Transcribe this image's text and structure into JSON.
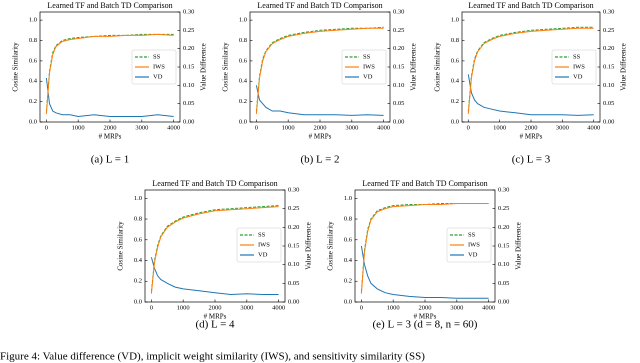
{
  "chart_data": [
    {
      "type": "line",
      "title": "Learned TF and Batch TD Comparison",
      "caption": "(a) L = 1",
      "xlabel": "# MRPs",
      "ylabel": "Cosine Similarity",
      "y2label": "Value Difference",
      "x": [
        0,
        100,
        200,
        300,
        500,
        750,
        1000,
        1500,
        2000,
        2500,
        3000,
        3500,
        4000
      ],
      "series": [
        {
          "name": "SS",
          "color": "#2ca02c",
          "dash": true,
          "values": [
            0.1,
            0.5,
            0.68,
            0.75,
            0.8,
            0.82,
            0.83,
            0.84,
            0.85,
            0.85,
            0.86,
            0.86,
            0.86
          ]
        },
        {
          "name": "IWS",
          "color": "#ff7f0e",
          "values": [
            0.08,
            0.48,
            0.66,
            0.74,
            0.79,
            0.81,
            0.82,
            0.84,
            0.84,
            0.85,
            0.85,
            0.86,
            0.85
          ]
        },
        {
          "name": "VD",
          "color": "#1f77b4",
          "axis": "y2",
          "values": [
            0.12,
            0.05,
            0.03,
            0.025,
            0.02,
            0.02,
            0.015,
            0.02,
            0.015,
            0.015,
            0.015,
            0.02,
            0.015
          ]
        }
      ],
      "xlim": [
        -200,
        4200
      ],
      "xticks": [
        0,
        1000,
        2000,
        3000,
        4000
      ],
      "ylim": [
        0,
        1.08
      ],
      "yticks": [
        {
          "value": 0,
          "label": "0.0"
        },
        {
          "value": 0.2,
          "label": "0.2"
        },
        {
          "value": 0.4,
          "label": "0.4"
        },
        {
          "value": 0.6,
          "label": "0.6"
        },
        {
          "value": 0.8,
          "label": "0.8"
        },
        {
          "value": 1,
          "label": "1.0"
        }
      ],
      "y2lim": [
        0,
        0.3
      ],
      "y2ticks": [
        {
          "value": 0,
          "label": "0.00"
        },
        {
          "value": 0.05,
          "label": "0.05"
        },
        {
          "value": 0.1,
          "label": "0.10"
        },
        {
          "value": 0.15,
          "label": "0.15"
        },
        {
          "value": 0.2,
          "label": "0.20"
        },
        {
          "value": 0.25,
          "label": "0.25"
        },
        {
          "value": 0.3,
          "label": "0.30"
        }
      ]
    },
    {
      "type": "line",
      "title": "Learned TF and Batch TD Comparison",
      "caption": "(b) L = 2",
      "xlabel": "# MRPs",
      "ylabel": "Cosine Similarity",
      "y2label": "Value Difference",
      "x": [
        0,
        100,
        200,
        300,
        500,
        750,
        1000,
        1500,
        2000,
        2500,
        3000,
        3500,
        4000
      ],
      "series": [
        {
          "name": "SS",
          "color": "#2ca02c",
          "dash": true,
          "values": [
            0.1,
            0.45,
            0.62,
            0.7,
            0.78,
            0.82,
            0.85,
            0.88,
            0.9,
            0.91,
            0.92,
            0.92,
            0.93
          ]
        },
        {
          "name": "IWS",
          "color": "#ff7f0e",
          "values": [
            0.08,
            0.43,
            0.6,
            0.69,
            0.77,
            0.81,
            0.84,
            0.87,
            0.89,
            0.9,
            0.91,
            0.92,
            0.92
          ]
        },
        {
          "name": "VD",
          "color": "#1f77b4",
          "axis": "y2",
          "values": [
            0.1,
            0.06,
            0.05,
            0.04,
            0.03,
            0.03,
            0.025,
            0.02,
            0.02,
            0.02,
            0.018,
            0.02,
            0.018
          ]
        }
      ],
      "xlim": [
        -200,
        4200
      ],
      "xticks": [
        0,
        1000,
        2000,
        3000,
        4000
      ],
      "ylim": [
        0,
        1.08
      ],
      "yticks": [
        {
          "value": 0,
          "label": "0.0"
        },
        {
          "value": 0.2,
          "label": "0.2"
        },
        {
          "value": 0.4,
          "label": "0.4"
        },
        {
          "value": 0.6,
          "label": "0.6"
        },
        {
          "value": 0.8,
          "label": "0.8"
        },
        {
          "value": 1,
          "label": "1.0"
        }
      ],
      "y2lim": [
        0,
        0.3
      ],
      "y2ticks": [
        {
          "value": 0,
          "label": "0.00"
        },
        {
          "value": 0.05,
          "label": "0.05"
        },
        {
          "value": 0.1,
          "label": "0.10"
        },
        {
          "value": 0.15,
          "label": "0.15"
        },
        {
          "value": 0.2,
          "label": "0.20"
        },
        {
          "value": 0.25,
          "label": "0.25"
        },
        {
          "value": 0.3,
          "label": "0.30"
        }
      ]
    },
    {
      "type": "line",
      "title": "Learned TF and Batch TD Comparison",
      "caption": "(c) L = 3",
      "xlabel": "# MRPs",
      "ylabel": "Cosine Similarity",
      "y2label": "Value Difference",
      "x": [
        0,
        100,
        200,
        300,
        500,
        750,
        1000,
        1500,
        2000,
        2500,
        3000,
        3500,
        4000
      ],
      "series": [
        {
          "name": "SS",
          "color": "#2ca02c",
          "dash": true,
          "values": [
            0.1,
            0.45,
            0.62,
            0.7,
            0.78,
            0.82,
            0.85,
            0.88,
            0.9,
            0.91,
            0.92,
            0.93,
            0.93
          ]
        },
        {
          "name": "IWS",
          "color": "#ff7f0e",
          "values": [
            0.08,
            0.43,
            0.6,
            0.69,
            0.77,
            0.81,
            0.84,
            0.87,
            0.89,
            0.9,
            0.91,
            0.92,
            0.92
          ]
        },
        {
          "name": "VD",
          "color": "#1f77b4",
          "axis": "y2",
          "values": [
            0.13,
            0.08,
            0.06,
            0.05,
            0.04,
            0.035,
            0.03,
            0.025,
            0.02,
            0.02,
            0.02,
            0.018,
            0.02
          ]
        }
      ],
      "xlim": [
        -200,
        4200
      ],
      "xticks": [
        0,
        1000,
        2000,
        3000,
        4000
      ],
      "ylim": [
        0,
        1.08
      ],
      "yticks": [
        {
          "value": 0,
          "label": "0.0"
        },
        {
          "value": 0.2,
          "label": "0.2"
        },
        {
          "value": 0.4,
          "label": "0.4"
        },
        {
          "value": 0.6,
          "label": "0.6"
        },
        {
          "value": 0.8,
          "label": "0.8"
        },
        {
          "value": 1,
          "label": "1.0"
        }
      ],
      "y2lim": [
        0,
        0.3
      ],
      "y2ticks": [
        {
          "value": 0,
          "label": "0.00"
        },
        {
          "value": 0.05,
          "label": "0.05"
        },
        {
          "value": 0.1,
          "label": "0.10"
        },
        {
          "value": 0.15,
          "label": "0.15"
        },
        {
          "value": 0.2,
          "label": "0.20"
        },
        {
          "value": 0.25,
          "label": "0.25"
        },
        {
          "value": 0.3,
          "label": "0.30"
        }
      ]
    },
    {
      "type": "line",
      "title": "Learned TF and Batch TD Comparison",
      "caption": "(d) L = 4",
      "xlabel": "# MRPs",
      "ylabel": "Cosine Similarity",
      "y2label": "Value Difference",
      "x": [
        0,
        100,
        200,
        300,
        500,
        750,
        1000,
        1500,
        2000,
        2500,
        3000,
        3500,
        4000
      ],
      "series": [
        {
          "name": "SS",
          "color": "#2ca02c",
          "dash": true,
          "values": [
            0.1,
            0.4,
            0.55,
            0.64,
            0.73,
            0.78,
            0.82,
            0.86,
            0.89,
            0.9,
            0.91,
            0.92,
            0.93
          ]
        },
        {
          "name": "IWS",
          "color": "#ff7f0e",
          "values": [
            0.08,
            0.38,
            0.53,
            0.63,
            0.72,
            0.77,
            0.81,
            0.85,
            0.88,
            0.89,
            0.9,
            0.91,
            0.92
          ]
        },
        {
          "name": "VD",
          "color": "#1f77b4",
          "axis": "y2",
          "values": [
            0.12,
            0.09,
            0.07,
            0.06,
            0.05,
            0.04,
            0.035,
            0.03,
            0.025,
            0.02,
            0.022,
            0.02,
            0.02
          ]
        }
      ],
      "xlim": [
        -200,
        4200
      ],
      "xticks": [
        0,
        1000,
        2000,
        3000,
        4000
      ],
      "ylim": [
        0,
        1.08
      ],
      "yticks": [
        {
          "value": 0,
          "label": "0.0"
        },
        {
          "value": 0.2,
          "label": "0.2"
        },
        {
          "value": 0.4,
          "label": "0.4"
        },
        {
          "value": 0.6,
          "label": "0.6"
        },
        {
          "value": 0.8,
          "label": "0.8"
        },
        {
          "value": 1,
          "label": "1.0"
        }
      ],
      "y2lim": [
        0,
        0.3
      ],
      "y2ticks": [
        {
          "value": 0,
          "label": "0.00"
        },
        {
          "value": 0.05,
          "label": "0.05"
        },
        {
          "value": 0.1,
          "label": "0.10"
        },
        {
          "value": 0.15,
          "label": "0.15"
        },
        {
          "value": 0.2,
          "label": "0.20"
        },
        {
          "value": 0.25,
          "label": "0.25"
        },
        {
          "value": 0.3,
          "label": "0.30"
        }
      ]
    },
    {
      "type": "line",
      "title": "Learned TF and Batch TD Comparison",
      "caption": "(e) L = 3 (d = 8,  n = 60)",
      "xlabel": "# MRPs",
      "ylabel": "Cosine Similarity",
      "y2label": "Value Difference",
      "x": [
        0,
        100,
        200,
        300,
        500,
        750,
        1000,
        1500,
        2000,
        2500,
        3000,
        3500,
        4000
      ],
      "series": [
        {
          "name": "SS",
          "color": "#2ca02c",
          "dash": true,
          "values": [
            0.1,
            0.5,
            0.7,
            0.8,
            0.88,
            0.91,
            0.93,
            0.94,
            0.94,
            0.95,
            0.95,
            0.95,
            0.95
          ]
        },
        {
          "name": "IWS",
          "color": "#ff7f0e",
          "values": [
            0.08,
            0.48,
            0.68,
            0.79,
            0.87,
            0.9,
            0.92,
            0.93,
            0.94,
            0.94,
            0.95,
            0.95,
            0.95
          ]
        },
        {
          "name": "VD",
          "color": "#1f77b4",
          "axis": "y2",
          "values": [
            0.15,
            0.1,
            0.07,
            0.05,
            0.035,
            0.025,
            0.02,
            0.015,
            0.012,
            0.012,
            0.01,
            0.01,
            0.01
          ]
        }
      ],
      "xlim": [
        -200,
        4200
      ],
      "xticks": [
        0,
        1000,
        2000,
        3000,
        4000
      ],
      "ylim": [
        0,
        1.08
      ],
      "yticks": [
        {
          "value": 0,
          "label": "0.0"
        },
        {
          "value": 0.2,
          "label": "0.2"
        },
        {
          "value": 0.4,
          "label": "0.4"
        },
        {
          "value": 0.6,
          "label": "0.6"
        },
        {
          "value": 0.8,
          "label": "0.8"
        },
        {
          "value": 1,
          "label": "1.0"
        }
      ],
      "y2lim": [
        0,
        0.3
      ],
      "y2ticks": [
        {
          "value": 0,
          "label": "0.00"
        },
        {
          "value": 0.05,
          "label": "0.05"
        },
        {
          "value": 0.1,
          "label": "0.10"
        },
        {
          "value": 0.15,
          "label": "0.15"
        },
        {
          "value": 0.2,
          "label": "0.20"
        },
        {
          "value": 0.25,
          "label": "0.25"
        },
        {
          "value": 0.3,
          "label": "0.30"
        }
      ]
    }
  ],
  "figure_caption": "Figure 4: Value difference (VD), implicit weight similarity (IWS), and sensitivity similarity (SS)"
}
